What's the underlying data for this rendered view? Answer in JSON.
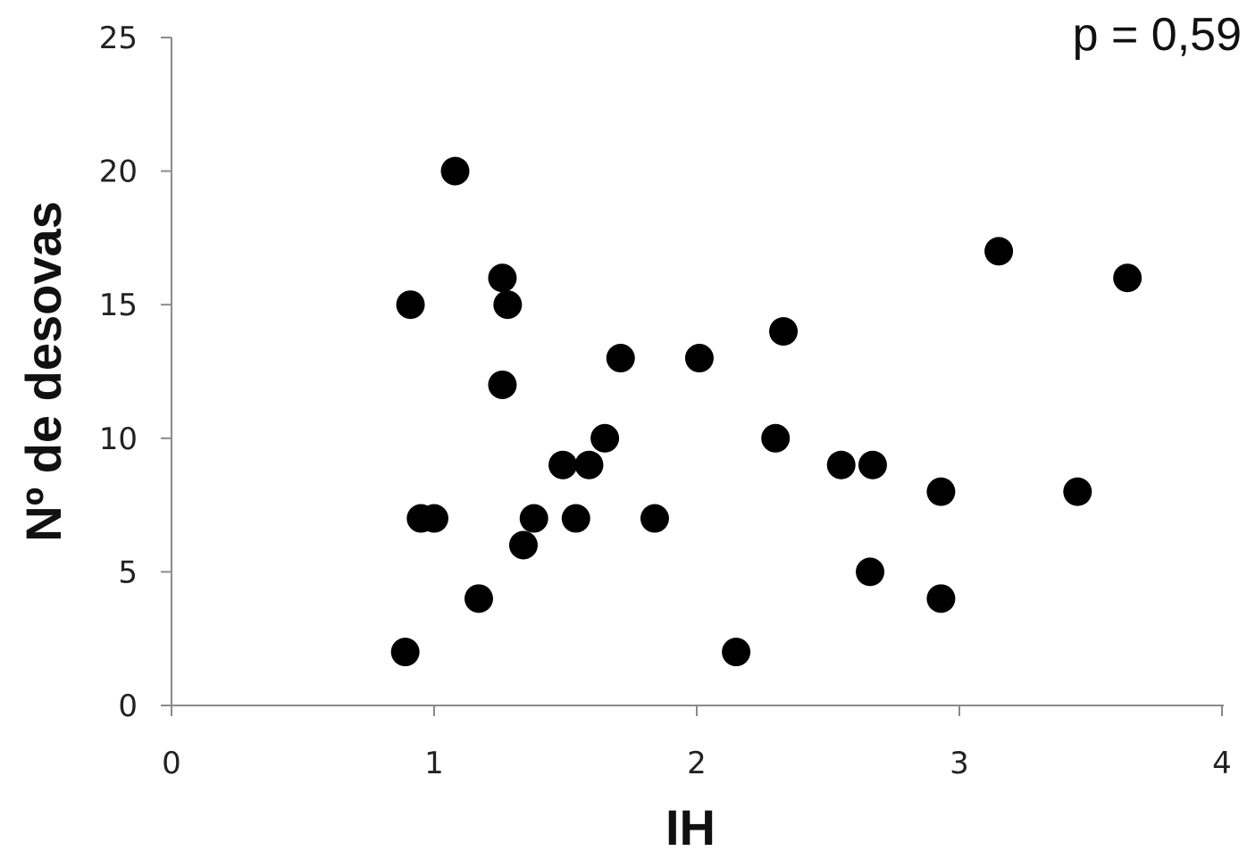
{
  "chart_data": {
    "type": "scatter",
    "title": "",
    "xlabel": "IH",
    "ylabel": "Nº de desovas",
    "annotation": "p = 0,59",
    "xlim": [
      0,
      4
    ],
    "ylim": [
      0,
      25
    ],
    "xticks": [
      0,
      1,
      2,
      3,
      4
    ],
    "yticks": [
      0,
      5,
      10,
      15,
      20,
      25
    ],
    "grid": false,
    "legend": "none",
    "marker_color": "#000000",
    "points": [
      {
        "x": 0.89,
        "y": 2
      },
      {
        "x": 0.91,
        "y": 15
      },
      {
        "x": 0.95,
        "y": 7
      },
      {
        "x": 1.0,
        "y": 7
      },
      {
        "x": 1.08,
        "y": 20
      },
      {
        "x": 1.17,
        "y": 4
      },
      {
        "x": 1.26,
        "y": 16
      },
      {
        "x": 1.26,
        "y": 12
      },
      {
        "x": 1.28,
        "y": 15
      },
      {
        "x": 1.34,
        "y": 6
      },
      {
        "x": 1.38,
        "y": 7
      },
      {
        "x": 1.49,
        "y": 9
      },
      {
        "x": 1.54,
        "y": 7
      },
      {
        "x": 1.59,
        "y": 9
      },
      {
        "x": 1.65,
        "y": 10
      },
      {
        "x": 1.71,
        "y": 13
      },
      {
        "x": 1.84,
        "y": 7
      },
      {
        "x": 2.01,
        "y": 13
      },
      {
        "x": 2.15,
        "y": 2
      },
      {
        "x": 2.3,
        "y": 10
      },
      {
        "x": 2.33,
        "y": 14
      },
      {
        "x": 2.55,
        "y": 9
      },
      {
        "x": 2.66,
        "y": 5
      },
      {
        "x": 2.67,
        "y": 9
      },
      {
        "x": 2.93,
        "y": 4
      },
      {
        "x": 2.93,
        "y": 8
      },
      {
        "x": 3.15,
        "y": 17
      },
      {
        "x": 3.45,
        "y": 8
      },
      {
        "x": 3.64,
        "y": 16
      }
    ]
  }
}
